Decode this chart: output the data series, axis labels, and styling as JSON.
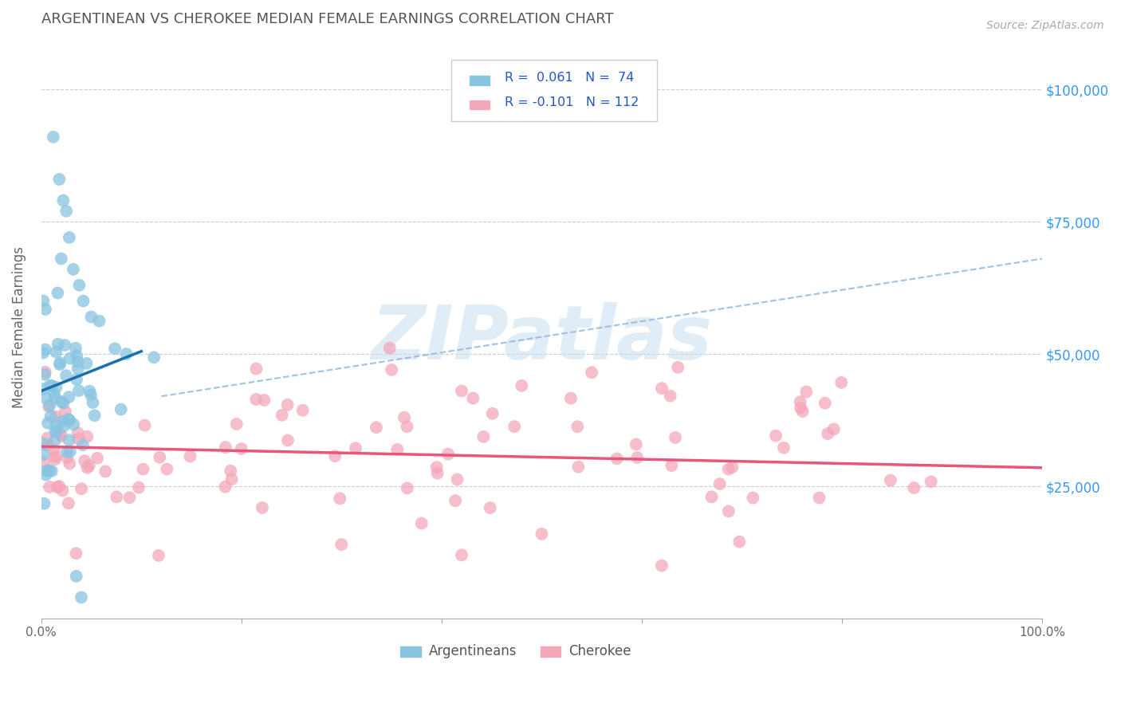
{
  "title": "ARGENTINEAN VS CHEROKEE MEDIAN FEMALE EARNINGS CORRELATION CHART",
  "source": "Source: ZipAtlas.com",
  "ylabel": "Median Female Earnings",
  "ytick_labels": [
    "",
    "$25,000",
    "$50,000",
    "$75,000",
    "$100,000"
  ],
  "blue_color": "#89c4e1",
  "pink_color": "#f4a7b9",
  "blue_line_color": "#1a6faf",
  "pink_line_color": "#e8567a",
  "dashed_line_color": "#99bbdd",
  "watermark_color": "#c8ddf0",
  "xlim": [
    0.0,
    1.0
  ],
  "ylim": [
    0,
    110000
  ],
  "background_color": "#ffffff",
  "grid_color": "#cccccc",
  "title_color": "#555555",
  "right_ylabel_color": "#3399ff",
  "blue_label": "Argentineans",
  "pink_label": "Cherokee",
  "legend_r_blue": "R =  0.061",
  "legend_n_blue": "N =  74",
  "legend_r_pink": "R = -0.101",
  "legend_n_pink": "N = 112"
}
